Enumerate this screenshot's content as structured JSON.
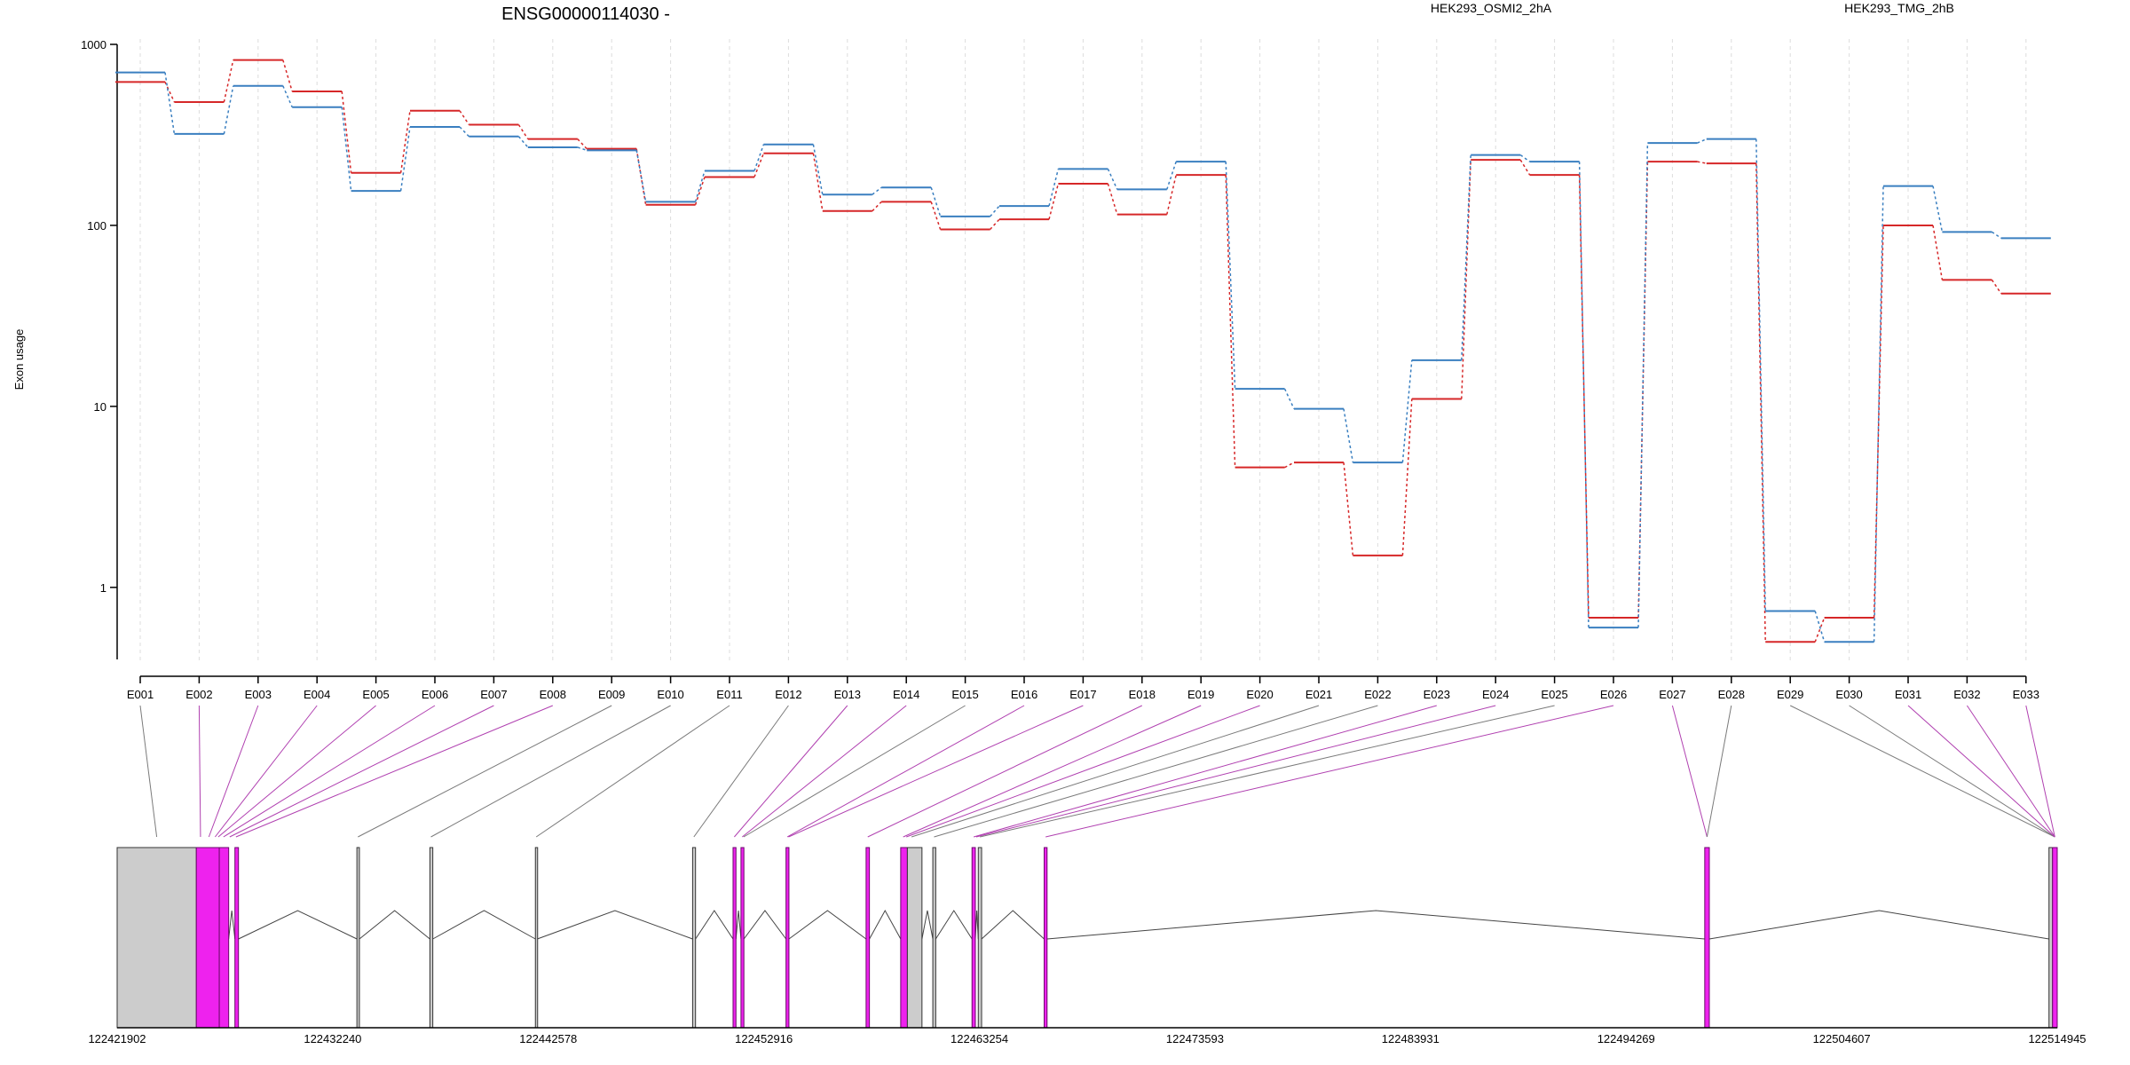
{
  "title": "ENSG00000114030 -",
  "ylabel": "Exon usage",
  "colors": {
    "series_a": "#d62728",
    "series_b": "#3a7fc0",
    "exon_highlight": "#ee22ee",
    "exon_plain": "#cccccc",
    "connector_highlight": "#b040b0",
    "connector_plain": "#7a7a7a"
  },
  "chart_data": {
    "type": "line",
    "title": "ENSG00000114030 -",
    "ylabel": "Exon usage",
    "yscale": "log",
    "ylim": [
      0.4,
      1000
    ],
    "yticks": [
      {
        "value": 1000,
        "label": "1000"
      },
      {
        "value": 100,
        "label": "100"
      },
      {
        "value": 10,
        "label": "10"
      },
      {
        "value": 1,
        "label": "1"
      }
    ],
    "grid": "vertical dashed",
    "legend_position": "top",
    "categories": [
      "E001",
      "E002",
      "E003",
      "E004",
      "E005",
      "E006",
      "E007",
      "E008",
      "E009",
      "E010",
      "E011",
      "E012",
      "E013",
      "E014",
      "E015",
      "E016",
      "E017",
      "E018",
      "E019",
      "E020",
      "E021",
      "E022",
      "E023",
      "E024",
      "E025",
      "E026",
      "E027",
      "E028",
      "E029",
      "E030",
      "E031",
      "E032",
      "E033"
    ],
    "series": [
      {
        "name": "HEK293_OSMI2_2hA",
        "color": "#d62728",
        "values": [
          620,
          480,
          820,
          550,
          195,
          430,
          360,
          300,
          265,
          130,
          185,
          250,
          120,
          135,
          95,
          108,
          170,
          115,
          190,
          4.6,
          4.9,
          1.5,
          11,
          230,
          190,
          0.68,
          225,
          220,
          0.5,
          0.68,
          100,
          50,
          42
        ]
      },
      {
        "name": "HEK293_TMG_2hB",
        "color": "#3a7fc0",
        "values": [
          700,
          320,
          590,
          450,
          155,
          350,
          310,
          270,
          260,
          135,
          200,
          280,
          148,
          162,
          112,
          128,
          205,
          158,
          225,
          12.5,
          9.7,
          4.9,
          18,
          245,
          225,
          0.6,
          285,
          300,
          0.74,
          0.5,
          165,
          92,
          85
        ]
      }
    ],
    "gene_model": {
      "genomic_ticks": [
        "122421902",
        "122432240",
        "122442578",
        "122452916",
        "122463254",
        "122473593",
        "122483931",
        "122494269",
        "122504607",
        "122514945"
      ],
      "xlim": [
        122421902,
        122514945
      ],
      "exons": [
        {
          "start": 122421902,
          "end": 122425700,
          "highlight": false
        },
        {
          "start": 122425700,
          "end": 122426800,
          "highlight": true
        },
        {
          "start": 122426800,
          "end": 122427250,
          "highlight": true
        },
        {
          "start": 122427550,
          "end": 122427720,
          "highlight": true
        },
        {
          "start": 122433400,
          "end": 122433520,
          "highlight": false
        },
        {
          "start": 122436900,
          "end": 122437040,
          "highlight": false
        },
        {
          "start": 122441960,
          "end": 122442050,
          "highlight": false
        },
        {
          "start": 122449500,
          "end": 122449640,
          "highlight": false
        },
        {
          "start": 122451440,
          "end": 122451580,
          "highlight": true
        },
        {
          "start": 122451820,
          "end": 122451960,
          "highlight": true
        },
        {
          "start": 122453980,
          "end": 122454120,
          "highlight": true
        },
        {
          "start": 122457820,
          "end": 122457980,
          "highlight": true
        },
        {
          "start": 122459480,
          "end": 122459800,
          "highlight": true
        },
        {
          "start": 122459800,
          "end": 122460500,
          "highlight": false
        },
        {
          "start": 122461020,
          "end": 122461160,
          "highlight": false
        },
        {
          "start": 122462900,
          "end": 122463060,
          "highlight": true
        },
        {
          "start": 122463200,
          "end": 122463360,
          "highlight": false
        },
        {
          "start": 122466360,
          "end": 122466500,
          "highlight": true
        },
        {
          "start": 122498040,
          "end": 122498260,
          "highlight": true
        },
        {
          "start": 122514550,
          "end": 122514720,
          "highlight": false
        },
        {
          "start": 122514720,
          "end": 122514945,
          "highlight": true
        }
      ],
      "connections": [
        {
          "exon": 0,
          "pos": 122423800,
          "highlight": false
        },
        {
          "exon": 1,
          "pos": 122425900,
          "highlight": true
        },
        {
          "exon": 2,
          "pos": 122426300,
          "highlight": true
        },
        {
          "exon": 3,
          "pos": 122426600,
          "highlight": true
        },
        {
          "exon": 4,
          "pos": 122426750,
          "highlight": true
        },
        {
          "exon": 5,
          "pos": 122427000,
          "highlight": true
        },
        {
          "exon": 6,
          "pos": 122427300,
          "highlight": true
        },
        {
          "exon": 7,
          "pos": 122427600,
          "highlight": true
        },
        {
          "exon": 8,
          "pos": 122433450,
          "highlight": false
        },
        {
          "exon": 9,
          "pos": 122436950,
          "highlight": false
        },
        {
          "exon": 10,
          "pos": 122442000,
          "highlight": false
        },
        {
          "exon": 11,
          "pos": 122449560,
          "highlight": false
        },
        {
          "exon": 12,
          "pos": 122451500,
          "highlight": true
        },
        {
          "exon": 13,
          "pos": 122451880,
          "highlight": true
        },
        {
          "exon": 14,
          "pos": 122451950,
          "highlight": false
        },
        {
          "exon": 15,
          "pos": 122454040,
          "highlight": true
        },
        {
          "exon": 16,
          "pos": 122454100,
          "highlight": true
        },
        {
          "exon": 17,
          "pos": 122457900,
          "highlight": true
        },
        {
          "exon": 18,
          "pos": 122459600,
          "highlight": true
        },
        {
          "exon": 19,
          "pos": 122459750,
          "highlight": true
        },
        {
          "exon": 20,
          "pos": 122460000,
          "highlight": false
        },
        {
          "exon": 21,
          "pos": 122461080,
          "highlight": false
        },
        {
          "exon": 22,
          "pos": 122462980,
          "highlight": true
        },
        {
          "exon": 23,
          "pos": 122463100,
          "highlight": true
        },
        {
          "exon": 24,
          "pos": 122463280,
          "highlight": false
        },
        {
          "exon": 25,
          "pos": 122466430,
          "highlight": true
        },
        {
          "exon": 26,
          "pos": 122498150,
          "highlight": true
        },
        {
          "exon": 27,
          "pos": 122498150,
          "highlight": false
        },
        {
          "exon": 28,
          "pos": 122514830,
          "highlight": false
        },
        {
          "exon": 29,
          "pos": 122514830,
          "highlight": false
        },
        {
          "exon": 30,
          "pos": 122514830,
          "highlight": true
        },
        {
          "exon": 31,
          "pos": 122514830,
          "highlight": true
        },
        {
          "exon": 32,
          "pos": 122514830,
          "highlight": true
        }
      ]
    }
  }
}
